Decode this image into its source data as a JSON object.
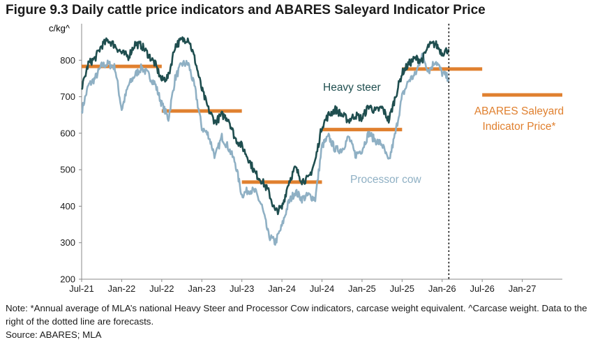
{
  "title": "Figure 9.3 Daily cattle price indicators and ABARES Saleyard Indicator Price",
  "note": "Note: *Annual average of MLA’s national Heavy Steer and Processor Cow indicators, carcase weight equivalent. ^Carcase weight. Data to the right of the dotted line are forecasts.",
  "source": "Source: ABARES; MLA",
  "colors": {
    "heavy_steer": "#1f4e4f",
    "processor_cow": "#8fb0c4",
    "abares": "#e0802f",
    "axis": "#888888"
  },
  "chart_data": {
    "type": "line",
    "ylabel": "c/kg^",
    "ylim": [
      200,
      900
    ],
    "yticks": [
      200,
      300,
      400,
      500,
      600,
      700,
      800
    ],
    "xlim": [
      "2021-07",
      "2027-07"
    ],
    "xticks": [
      {
        "date": "2021-07",
        "label": "Jul-21"
      },
      {
        "date": "2022-01",
        "label": "Jan-22"
      },
      {
        "date": "2022-07",
        "label": "Jul-22"
      },
      {
        "date": "2023-01",
        "label": "Jan-23"
      },
      {
        "date": "2023-07",
        "label": "Jul-23"
      },
      {
        "date": "2024-01",
        "label": "Jan-24"
      },
      {
        "date": "2024-07",
        "label": "Jul-24"
      },
      {
        "date": "2025-01",
        "label": "Jan-25"
      },
      {
        "date": "2025-07",
        "label": "Jul-25"
      },
      {
        "date": "2026-01",
        "label": "Jan-26"
      },
      {
        "date": "2026-07",
        "label": "Jul-26"
      },
      {
        "date": "2027-01",
        "label": "Jan-27"
      }
    ],
    "forecast_from": "2026-02",
    "series": [
      {
        "name": "Heavy steer",
        "points": [
          [
            "2021-07",
            720
          ],
          [
            "2021-08",
            790
          ],
          [
            "2021-09",
            805
          ],
          [
            "2021-10",
            840
          ],
          [
            "2021-11",
            855
          ],
          [
            "2021-12",
            840
          ],
          [
            "2022-01",
            820
          ],
          [
            "2022-02",
            810
          ],
          [
            "2022-03",
            845
          ],
          [
            "2022-04",
            840
          ],
          [
            "2022-05",
            815
          ],
          [
            "2022-06",
            790
          ],
          [
            "2022-07",
            745
          ],
          [
            "2022-08",
            755
          ],
          [
            "2022-09",
            840
          ],
          [
            "2022-10",
            855
          ],
          [
            "2022-11",
            860
          ],
          [
            "2022-12",
            800
          ],
          [
            "2023-01",
            720
          ],
          [
            "2023-02",
            665
          ],
          [
            "2023-03",
            630
          ],
          [
            "2023-04",
            650
          ],
          [
            "2023-05",
            640
          ],
          [
            "2023-06",
            585
          ],
          [
            "2023-07",
            565
          ],
          [
            "2023-08",
            530
          ],
          [
            "2023-09",
            490
          ],
          [
            "2023-10",
            470
          ],
          [
            "2023-11",
            440
          ],
          [
            "2023-12",
            385
          ],
          [
            "2024-01",
            395
          ],
          [
            "2024-02",
            465
          ],
          [
            "2024-03",
            505
          ],
          [
            "2024-04",
            470
          ],
          [
            "2024-05",
            475
          ],
          [
            "2024-06",
            525
          ],
          [
            "2024-07",
            620
          ],
          [
            "2024-08",
            650
          ],
          [
            "2024-09",
            665
          ],
          [
            "2024-10",
            650
          ],
          [
            "2024-11",
            635
          ],
          [
            "2024-12",
            650
          ],
          [
            "2025-01",
            640
          ],
          [
            "2025-02",
            675
          ],
          [
            "2025-03",
            660
          ],
          [
            "2025-04",
            670
          ],
          [
            "2025-05",
            635
          ],
          [
            "2025-06",
            700
          ],
          [
            "2025-07",
            765
          ],
          [
            "2025-08",
            790
          ],
          [
            "2025-09",
            805
          ],
          [
            "2025-10",
            800
          ],
          [
            "2025-11",
            840
          ],
          [
            "2025-12",
            845
          ],
          [
            "2026-01",
            820
          ],
          [
            "2026-02",
            830
          ]
        ]
      },
      {
        "name": "Processor cow",
        "points": [
          [
            "2021-07",
            660
          ],
          [
            "2021-08",
            730
          ],
          [
            "2021-09",
            750
          ],
          [
            "2021-10",
            785
          ],
          [
            "2021-11",
            790
          ],
          [
            "2021-12",
            780
          ],
          [
            "2022-01",
            665
          ],
          [
            "2022-02",
            730
          ],
          [
            "2022-03",
            760
          ],
          [
            "2022-04",
            780
          ],
          [
            "2022-05",
            760
          ],
          [
            "2022-06",
            735
          ],
          [
            "2022-07",
            680
          ],
          [
            "2022-08",
            640
          ],
          [
            "2022-09",
            750
          ],
          [
            "2022-10",
            790
          ],
          [
            "2022-11",
            790
          ],
          [
            "2022-12",
            720
          ],
          [
            "2023-01",
            615
          ],
          [
            "2023-02",
            595
          ],
          [
            "2023-03",
            535
          ],
          [
            "2023-04",
            590
          ],
          [
            "2023-05",
            560
          ],
          [
            "2023-06",
            520
          ],
          [
            "2023-07",
            430
          ],
          [
            "2023-08",
            445
          ],
          [
            "2023-09",
            440
          ],
          [
            "2023-10",
            400
          ],
          [
            "2023-11",
            320
          ],
          [
            "2023-12",
            300
          ],
          [
            "2024-01",
            345
          ],
          [
            "2024-02",
            410
          ],
          [
            "2024-03",
            440
          ],
          [
            "2024-04",
            420
          ],
          [
            "2024-05",
            430
          ],
          [
            "2024-06",
            420
          ],
          [
            "2024-07",
            565
          ],
          [
            "2024-08",
            590
          ],
          [
            "2024-09",
            555
          ],
          [
            "2024-10",
            555
          ],
          [
            "2024-11",
            590
          ],
          [
            "2024-12",
            540
          ],
          [
            "2025-01",
            555
          ],
          [
            "2025-02",
            600
          ],
          [
            "2025-03",
            580
          ],
          [
            "2025-04",
            570
          ],
          [
            "2025-05",
            520
          ],
          [
            "2025-06",
            600
          ],
          [
            "2025-07",
            700
          ],
          [
            "2025-08",
            745
          ],
          [
            "2025-09",
            760
          ],
          [
            "2025-10",
            815
          ],
          [
            "2025-11",
            770
          ],
          [
            "2025-12",
            800
          ],
          [
            "2026-01",
            765
          ],
          [
            "2026-02",
            750
          ]
        ]
      }
    ],
    "abares_price": {
      "name": "ABARES Saleyard Indicator Price*",
      "segments": [
        {
          "from": "2021-07",
          "to": "2022-07",
          "value": 783
        },
        {
          "from": "2022-07",
          "to": "2023-07",
          "value": 661
        },
        {
          "from": "2023-07",
          "to": "2024-07",
          "value": 466
        },
        {
          "from": "2024-07",
          "to": "2025-07",
          "value": 610
        },
        {
          "from": "2025-07",
          "to": "2026-07",
          "value": 776
        },
        {
          "from": "2026-07",
          "to": "2027-07",
          "value": 705
        }
      ]
    },
    "labels": {
      "heavy_steer": "Heavy steer",
      "processor_cow": "Processor cow",
      "abares_line1": "ABARES Saleyard",
      "abares_line2": "Indicator Price*"
    }
  }
}
